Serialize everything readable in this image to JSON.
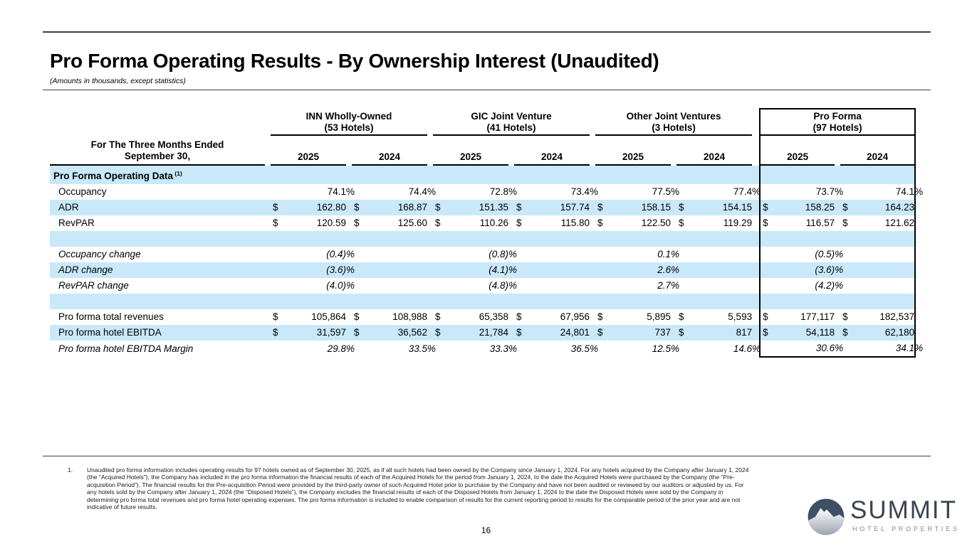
{
  "page": {
    "title": "Pro Forma Operating Results - By Ownership Interest (Unaudited)",
    "subtitle": "(Amounts in thousands, except statistics)",
    "page_number": "16"
  },
  "table": {
    "period_header": [
      "For The Three Months Ended",
      "September 30,"
    ],
    "years": [
      "2025",
      "2024"
    ],
    "groups": [
      {
        "name": "INN Wholly-Owned",
        "hotels": "(53 Hotels)"
      },
      {
        "name": "GIC Joint Venture",
        "hotels": "(41 Hotels)"
      },
      {
        "name": "Other Joint Ventures",
        "hotels": "(3 Hotels)"
      },
      {
        "name": "Pro Forma",
        "hotels": "(97 Hotels)"
      }
    ],
    "rows": [
      {
        "section": true,
        "label": "Pro Forma Operating Data",
        "note": "(1)",
        "shade": true
      },
      {
        "label": "Occupancy",
        "cells": [
          "74.1 %",
          "74.4 %",
          "72.8 %",
          "73.4 %",
          "77.5 %",
          "77.4 %",
          "73.7 %",
          "74.1 %"
        ]
      },
      {
        "label": "ADR",
        "shade": true,
        "cells": [
          {
            "d": "$",
            "v": "162.80"
          },
          {
            "d": "$",
            "v": "168.87"
          },
          {
            "d": "$",
            "v": "151.35"
          },
          {
            "d": "$",
            "v": "157.74"
          },
          {
            "d": "$",
            "v": "158.15"
          },
          {
            "d": "$",
            "v": "154.15"
          },
          {
            "d": "$",
            "v": "158.25"
          },
          {
            "d": "$",
            "v": "164.23"
          }
        ]
      },
      {
        "label": "RevPAR",
        "cells": [
          {
            "d": "$",
            "v": "120.59"
          },
          {
            "d": "$",
            "v": "125.60"
          },
          {
            "d": "$",
            "v": "110.26"
          },
          {
            "d": "$",
            "v": "115.80"
          },
          {
            "d": "$",
            "v": "122.50"
          },
          {
            "d": "$",
            "v": "119.29"
          },
          {
            "d": "$",
            "v": "116.57"
          },
          {
            "d": "$",
            "v": "121.62"
          }
        ]
      },
      {
        "blank": true,
        "shade": true
      },
      {
        "label": "Occupancy change",
        "italic": true,
        "cells": [
          "(0.4)%",
          "",
          "(0.8)%",
          "",
          "0.1 %",
          "",
          "(0.5)%",
          ""
        ]
      },
      {
        "label": "ADR change",
        "italic": true,
        "shade": true,
        "cells": [
          "(3.6)%",
          "",
          "(4.1)%",
          "",
          "2.6 %",
          "",
          "(3.6)%",
          ""
        ]
      },
      {
        "label": "RevPAR change",
        "italic": true,
        "cells": [
          "(4.0)%",
          "",
          "(4.8)%",
          "",
          "2.7 %",
          "",
          "(4.2)%",
          ""
        ]
      },
      {
        "blank": true,
        "shade": true
      },
      {
        "label": "Pro forma total revenues",
        "cells": [
          {
            "d": "$",
            "v": "105,864"
          },
          {
            "d": "$",
            "v": "108,988"
          },
          {
            "d": "$",
            "v": "65,358"
          },
          {
            "d": "$",
            "v": "67,956"
          },
          {
            "d": "$",
            "v": "5,895"
          },
          {
            "d": "$",
            "v": "5,593"
          },
          {
            "d": "$",
            "v": "177,117"
          },
          {
            "d": "$",
            "v": "182,537"
          }
        ]
      },
      {
        "label": "Pro forma hotel EBITDA",
        "shade": true,
        "cells": [
          {
            "d": "$",
            "v": "31,597"
          },
          {
            "d": "$",
            "v": "36,562"
          },
          {
            "d": "$",
            "v": "21,784"
          },
          {
            "d": "$",
            "v": "24,801"
          },
          {
            "d": "$",
            "v": "737"
          },
          {
            "d": "$",
            "v": "817"
          },
          {
            "d": "$",
            "v": "54,118"
          },
          {
            "d": "$",
            "v": "62,180"
          }
        ]
      },
      {
        "label": "Pro forma hotel EBITDA Margin",
        "italic": true,
        "last": true,
        "cells": [
          "29.8 %",
          "33.5 %",
          "33.3 %",
          "36.5 %",
          "12.5 %",
          "14.6 %",
          "30.6 %",
          "34.1 %"
        ]
      }
    ]
  },
  "footnote": {
    "number": "1.",
    "text": "Unaudited pro forma information includes operating results for 97 hotels owned as of September 30, 2025, as if all such hotels had been owned by the Company since January 1, 2024. For any hotels acquired by the Company after January 1, 2024 (the “Acquired Hotels”), the Company has included in the pro forma information the financial results of each of the Acquired Hotels for the period from January 1, 2024, to the date the Acquired Hotels were purchased by the Company (the “Pre-acquisition Period”). The financial results for the Pre-acquisition Period were provided by the third-party owner of such Acquired Hotel prior to purchase by the Company and have not been audited or reviewed by our auditors or adjusted by us. For any hotels sold by the Company after January 1, 2024 (the “Disposed Hotels”), the Company excludes the financial results of each of the Disposed Hotels from January 1, 2024 to the date the Disposed Hotels were sold by the Company in determining pro forma total revenues and pro forma hotel operating expenses. The pro forma information is included to enable comparison of results for the current reporting period to results for the comparable period of the prior year and are not indicative of future results."
  },
  "logo": {
    "wordmark": "SUMMIT",
    "subtext": "HOTEL PROPERTIES",
    "mark": "mountain-circle"
  },
  "colors": {
    "stripe": "#c9e9fa",
    "rule": "#3f3f3f",
    "logo_navy": "#3f4f66",
    "logo_text": "#39434f",
    "logo_subtext": "#7d8794"
  }
}
